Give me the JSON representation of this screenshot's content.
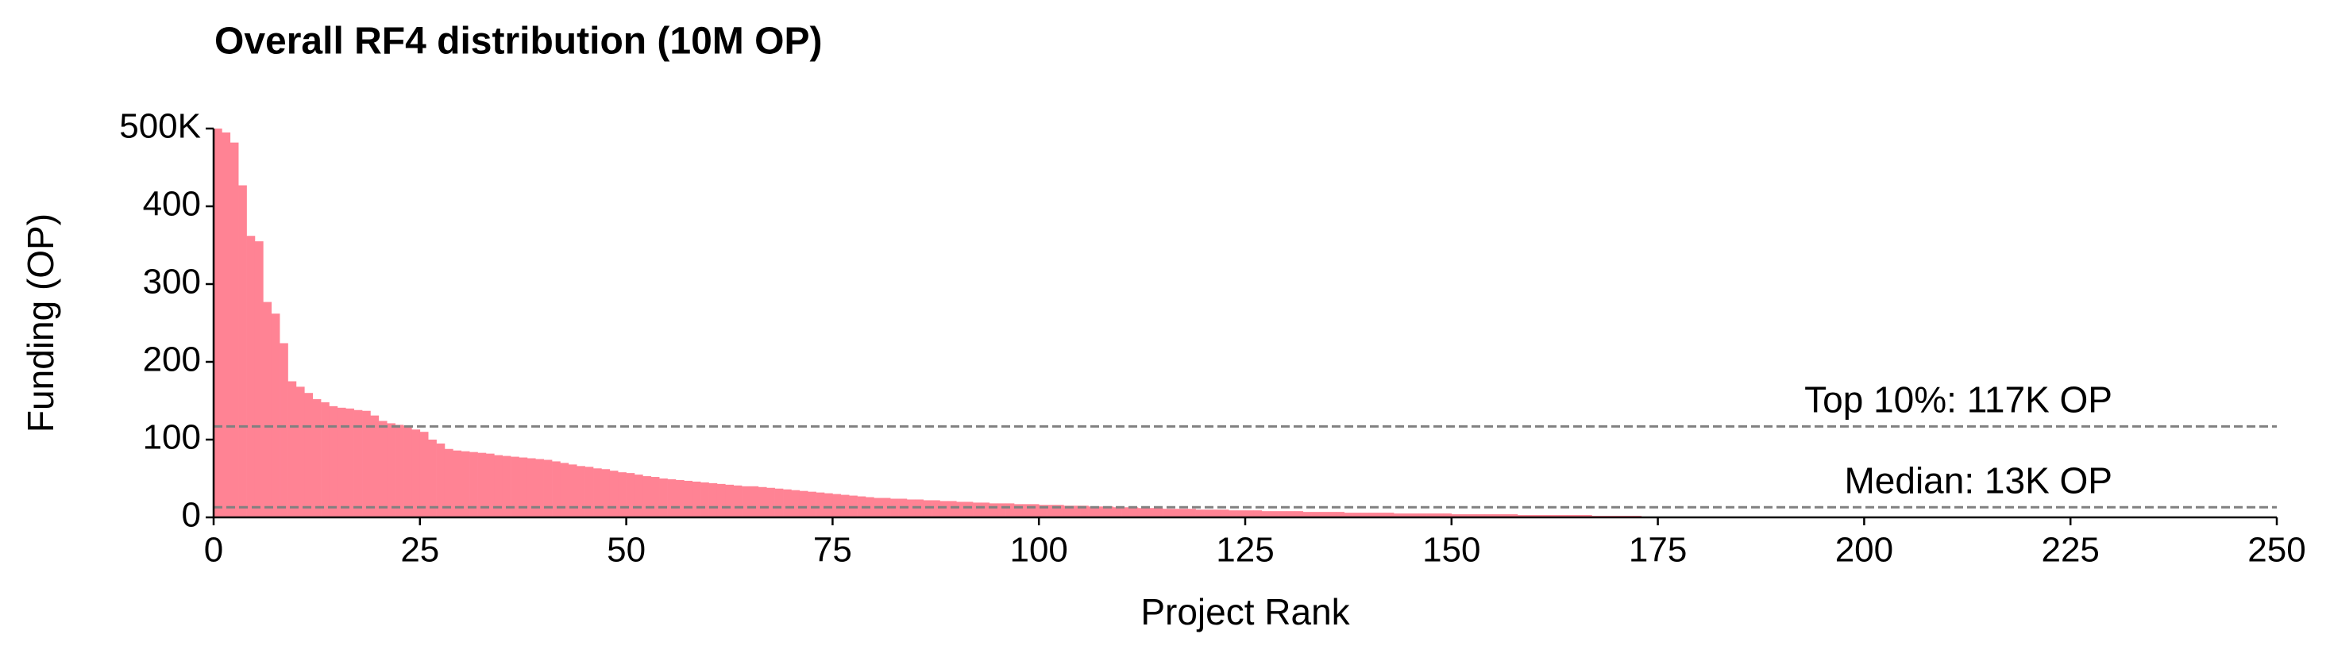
{
  "chart_data": {
    "type": "bar",
    "title": "Overall RF4 distribution (10M OP)",
    "xlabel": "Project Rank",
    "ylabel": "Funding (OP)",
    "color": "#ff8394",
    "x": [
      0,
      1,
      2,
      3,
      4,
      5,
      6,
      7,
      8,
      9,
      10,
      11,
      12,
      13,
      14,
      15,
      16,
      17,
      18,
      19,
      20,
      21,
      22,
      23,
      24,
      25,
      26,
      27,
      28,
      29,
      30,
      31,
      32,
      33,
      34,
      35,
      36,
      37,
      38,
      39,
      40,
      41,
      42,
      43,
      44,
      45,
      46,
      47,
      48,
      49,
      50,
      51,
      52,
      53,
      54,
      55,
      56,
      57,
      58,
      59,
      60,
      61,
      62,
      63,
      64,
      65,
      66,
      67,
      68,
      69,
      70,
      71,
      72,
      73,
      74,
      75,
      76,
      77,
      78,
      79,
      80,
      81,
      82,
      83,
      84,
      85,
      86,
      87,
      88,
      89,
      90,
      91,
      92,
      93,
      94,
      95,
      96,
      97,
      98,
      99,
      100,
      101,
      102,
      103,
      104,
      105,
      106,
      107,
      108,
      109,
      110,
      111,
      112,
      113,
      114,
      115,
      116,
      117,
      118,
      119,
      120,
      121,
      122,
      123,
      124,
      125,
      126,
      127,
      128,
      129,
      130,
      131,
      132,
      133,
      134,
      135,
      136,
      137,
      138,
      139,
      140,
      141,
      142,
      143,
      144,
      145,
      146,
      147,
      148,
      149,
      150,
      151,
      152,
      153,
      154,
      155,
      156,
      157,
      158,
      159,
      160,
      161,
      162,
      163,
      164,
      165,
      166,
      167,
      168,
      169,
      170,
      171,
      172,
      173,
      174,
      175
    ],
    "values": [
      500,
      495,
      482,
      427,
      362,
      355,
      277,
      262,
      224,
      175,
      168,
      160,
      152,
      148,
      143,
      141,
      140,
      138,
      137,
      131,
      124,
      121,
      119,
      118,
      113,
      110,
      100,
      95,
      88,
      86,
      85,
      84,
      83,
      82,
      80,
      79,
      78,
      77,
      76,
      75,
      74,
      72,
      70,
      68,
      66,
      65,
      63,
      62,
      60,
      58,
      57,
      55,
      53,
      52,
      50,
      49,
      48,
      47,
      46,
      45,
      44,
      43,
      42,
      41,
      40,
      40,
      39,
      38,
      37,
      36,
      35,
      34,
      33,
      32,
      31,
      30,
      29,
      28,
      27,
      26,
      25,
      25,
      24,
      24,
      23,
      23,
      22,
      22,
      21,
      21,
      20,
      20,
      19,
      19,
      18,
      18,
      18,
      17,
      17,
      17,
      16,
      16,
      16,
      15,
      15,
      15,
      14,
      14,
      14,
      13,
      13,
      13,
      12,
      12,
      12,
      11,
      11,
      11,
      11,
      10,
      10,
      10,
      10,
      9,
      9,
      9,
      9,
      8,
      8,
      8,
      8,
      8,
      7,
      7,
      7,
      7,
      7,
      6,
      6,
      6,
      6,
      6,
      6,
      5,
      5,
      5,
      5,
      5,
      5,
      5,
      4,
      4,
      4,
      4,
      4,
      4,
      4,
      4,
      3,
      3,
      3,
      3,
      3,
      3,
      3,
      3,
      3,
      2,
      2,
      2,
      2,
      2,
      2,
      1,
      1,
      1
    ],
    "xlim": [
      0,
      250
    ],
    "xticks": [
      0,
      25,
      50,
      75,
      100,
      125,
      150,
      175,
      200,
      225,
      250
    ],
    "ylim": [
      0,
      500
    ],
    "yticks": [
      0,
      100,
      200,
      300,
      400,
      {
        "value": 500,
        "label": "500K"
      }
    ],
    "hlines": [
      {
        "value": 117,
        "label": "Top 10%: 117K OP"
      },
      {
        "value": 13,
        "label": "Median: 13K OP"
      }
    ]
  }
}
